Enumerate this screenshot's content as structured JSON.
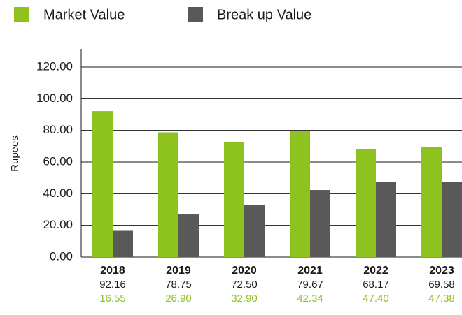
{
  "chart_data": {
    "type": "bar",
    "y_label": "Rupees",
    "categories": [
      "2018",
      "2019",
      "2020",
      "2021",
      "2022",
      "2023"
    ],
    "series": [
      {
        "name": "Market Value",
        "color": "#8dc21f",
        "values": [
          92.16,
          78.75,
          72.5,
          79.67,
          68.17,
          69.58
        ],
        "value_labels": [
          "92.16",
          "78.75",
          "72.50",
          "79.67",
          "68.17",
          "69.58"
        ]
      },
      {
        "name": "Break up Value",
        "color": "#595959",
        "values": [
          16.55,
          26.9,
          32.9,
          42.34,
          47.4,
          47.38
        ],
        "value_labels": [
          "16.55",
          "26.90",
          "32.90",
          "42.34",
          "47.40",
          "47.38"
        ]
      }
    ],
    "ylim": [
      0,
      120
    ],
    "yticks": [
      {
        "value": 0,
        "label": "0.00"
      },
      {
        "value": 20,
        "label": "20.00"
      },
      {
        "value": 40,
        "label": "40.00"
      },
      {
        "value": 60,
        "label": "60.00"
      },
      {
        "value": 80,
        "label": "80.00"
      },
      {
        "value": 100,
        "label": "100.00"
      },
      {
        "value": 120,
        "label": "120.00"
      }
    ],
    "grid": true,
    "legend": "top-left"
  }
}
